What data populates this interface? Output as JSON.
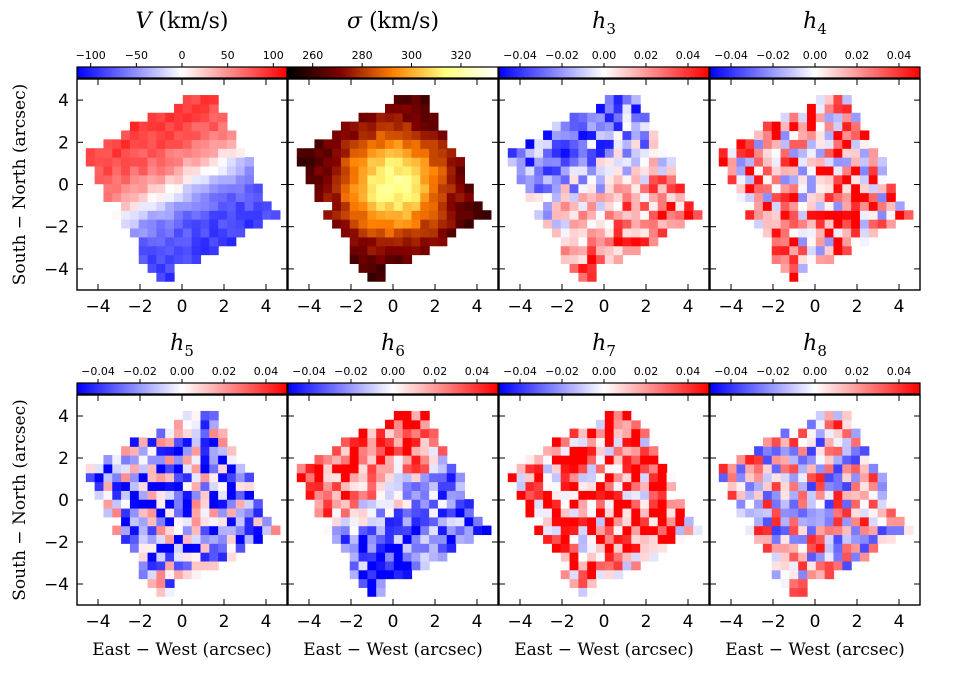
{
  "chart_data": {
    "type": "heatmap",
    "description_kind": "kinematic maps grid",
    "grid": {
      "rows": 2,
      "cols": 4
    },
    "xlabel": "East − West (arcsec)",
    "ylabel": "South − North (arcsec)",
    "xlim": [
      -5,
      5
    ],
    "ylim": [
      -5,
      5
    ],
    "xticks": [
      -4,
      -2,
      0,
      2,
      4
    ],
    "yticks": [
      -4,
      -2,
      0,
      2,
      4
    ],
    "panels": [
      {
        "id": "V",
        "title_sym": "V",
        "title_unit": " (km/s)",
        "colormap": "bwr",
        "range": [
          -115,
          115
        ],
        "cbar_ticks": [
          "−100",
          "−50",
          "0",
          "50",
          "100"
        ],
        "cbar_values": [
          -100,
          -50,
          0,
          50,
          100
        ],
        "pattern": {
          "kind": "rotation",
          "amplitude": 90
        }
      },
      {
        "id": "sigma",
        "title_sym": "σ",
        "title_unit": " (km/s)",
        "colormap": "afmhot",
        "range": [
          250,
          335
        ],
        "cbar_ticks": [
          "260",
          "280",
          "300",
          "320"
        ],
        "cbar_values": [
          260,
          280,
          300,
          320
        ],
        "pattern": {
          "kind": "central_peak",
          "center": 318,
          "edge": 258
        }
      },
      {
        "id": "h3",
        "title_sym": "h",
        "title_sub": "3",
        "colormap": "bwr",
        "range": [
          -0.05,
          0.05
        ],
        "cbar_ticks": [
          "−0.04",
          "−0.02",
          "0.00",
          "0.02",
          "0.04"
        ],
        "cbar_values": [
          -0.04,
          -0.02,
          0.0,
          0.02,
          0.04
        ],
        "pattern": {
          "kind": "anti_rotation",
          "amplitude": 0.03
        }
      },
      {
        "id": "h4",
        "title_sym": "h",
        "title_sub": "4",
        "colormap": "bwr",
        "range": [
          -0.05,
          0.05
        ],
        "cbar_ticks": [
          "−0.04",
          "−0.02",
          "0.00",
          "0.02",
          "0.04"
        ],
        "cbar_values": [
          -0.04,
          -0.02,
          0.0,
          0.02,
          0.04
        ],
        "pattern": {
          "kind": "noise",
          "mean": 0.018
        }
      },
      {
        "id": "h5",
        "title_sym": "h",
        "title_sub": "5",
        "colormap": "bwr",
        "range": [
          -0.05,
          0.05
        ],
        "cbar_ticks": [
          "−0.04",
          "−0.02",
          "0.00",
          "0.02",
          "0.04"
        ],
        "cbar_values": [
          -0.04,
          -0.02,
          0.0,
          0.02,
          0.04
        ],
        "pattern": {
          "kind": "noise",
          "mean": -0.018
        }
      },
      {
        "id": "h6",
        "title_sym": "h",
        "title_sub": "6",
        "colormap": "bwr",
        "range": [
          -0.05,
          0.05
        ],
        "cbar_ticks": [
          "−0.04",
          "−0.02",
          "0.00",
          "0.02",
          "0.04"
        ],
        "cbar_values": [
          -0.04,
          -0.02,
          0.0,
          0.02,
          0.04
        ],
        "pattern": {
          "kind": "north_south",
          "amplitude": 0.035
        }
      },
      {
        "id": "h7",
        "title_sym": "h",
        "title_sub": "7",
        "colormap": "bwr",
        "range": [
          -0.05,
          0.05
        ],
        "cbar_ticks": [
          "−0.04",
          "−0.02",
          "0.00",
          "0.02",
          "0.04"
        ],
        "cbar_values": [
          -0.04,
          -0.02,
          0.0,
          0.02,
          0.04
        ],
        "pattern": {
          "kind": "noise",
          "mean": 0.028
        }
      },
      {
        "id": "h8",
        "title_sym": "h",
        "title_sub": "8",
        "colormap": "bwr",
        "range": [
          -0.05,
          0.05
        ],
        "cbar_ticks": [
          "−0.04",
          "−0.02",
          "0.00",
          "0.02",
          "0.04"
        ],
        "cbar_values": [
          -0.04,
          -0.02,
          0.0,
          0.02,
          0.04
        ],
        "pattern": {
          "kind": "noise",
          "mean": 0.004
        }
      }
    ],
    "field": {
      "center": [
        0.0,
        0.0
      ],
      "rotation_deg": 28,
      "half_width": 3.3,
      "half_height": 3.5
    }
  }
}
